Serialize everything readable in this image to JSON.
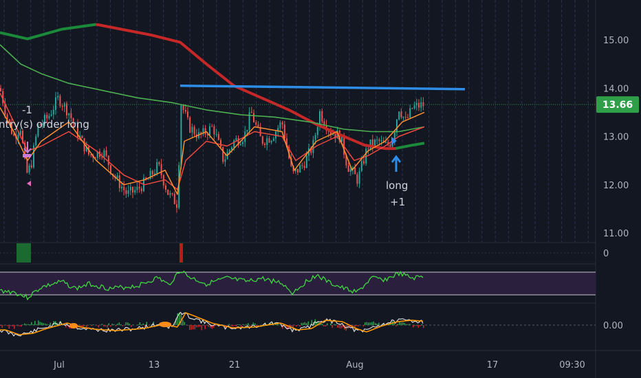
{
  "chart_data": {
    "type": "candlestick",
    "title": "",
    "price_axis": {
      "ticks": [
        15.0,
        14.0,
        13.0,
        12.0,
        11.0
      ],
      "last_price_label": "13.66",
      "ylim": [
        10.75,
        15.9
      ]
    },
    "time_axis": {
      "ticks": [
        "Jul",
        "13",
        "21",
        "Aug",
        "17",
        "09:30"
      ]
    },
    "volume_pane": {
      "zero_label": "0"
    },
    "macd_pane": {
      "zero_label": "0.00"
    },
    "annotations": {
      "entry_count": "-1",
      "entry_text": "ntry(s) order long",
      "long_text": "long",
      "long_count": "+1"
    },
    "resistance_line": {
      "start_value": 14.05,
      "end_value": 13.98
    },
    "colors": {
      "background": "#131722",
      "up": "#26a69a",
      "down": "#ef5350",
      "resistance": "#2e8de6",
      "ma_slow_up": "#1b8a3a",
      "ma_slow_down": "#c62828",
      "ma_green": "#4caf50",
      "ma_orange": "#ff8f2e",
      "ma_red": "#f0483e",
      "rsi_line": "#3fd63f",
      "rsi_band": "#2a1f3d",
      "last_price_bg": "#2e9e49"
    }
  }
}
